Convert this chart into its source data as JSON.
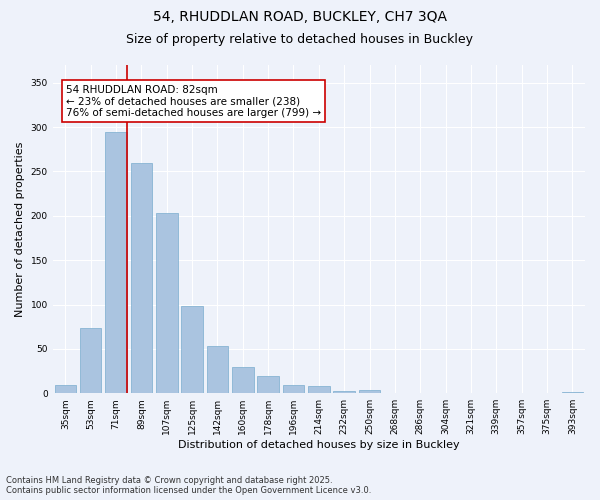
{
  "title_line1": "54, RHUDDLAN ROAD, BUCKLEY, CH7 3QA",
  "title_line2": "Size of property relative to detached houses in Buckley",
  "xlabel": "Distribution of detached houses by size in Buckley",
  "ylabel": "Number of detached properties",
  "categories": [
    "35sqm",
    "53sqm",
    "71sqm",
    "89sqm",
    "107sqm",
    "125sqm",
    "142sqm",
    "160sqm",
    "178sqm",
    "196sqm",
    "214sqm",
    "232sqm",
    "250sqm",
    "268sqm",
    "286sqm",
    "304sqm",
    "321sqm",
    "339sqm",
    "357sqm",
    "375sqm",
    "393sqm"
  ],
  "values": [
    9,
    74,
    295,
    260,
    203,
    98,
    53,
    30,
    19,
    9,
    8,
    3,
    4,
    0,
    0,
    0,
    0,
    0,
    0,
    0,
    1
  ],
  "bar_color": "#aac4e0",
  "bar_edgecolor": "#7aadce",
  "vline_color": "#cc0000",
  "annotation_text": "54 RHUDDLAN ROAD: 82sqm\n← 23% of detached houses are smaller (238)\n76% of semi-detached houses are larger (799) →",
  "annotation_box_color": "#ffffff",
  "annotation_box_edgecolor": "#cc0000",
  "ylim": [
    0,
    370
  ],
  "yticks": [
    0,
    50,
    100,
    150,
    200,
    250,
    300,
    350
  ],
  "background_color": "#eef2fa",
  "grid_color": "#ffffff",
  "footer_line1": "Contains HM Land Registry data © Crown copyright and database right 2025.",
  "footer_line2": "Contains public sector information licensed under the Open Government Licence v3.0.",
  "title_fontsize": 10,
  "subtitle_fontsize": 9,
  "axis_label_fontsize": 8,
  "tick_fontsize": 6.5,
  "annotation_fontsize": 7.5,
  "footer_fontsize": 6
}
